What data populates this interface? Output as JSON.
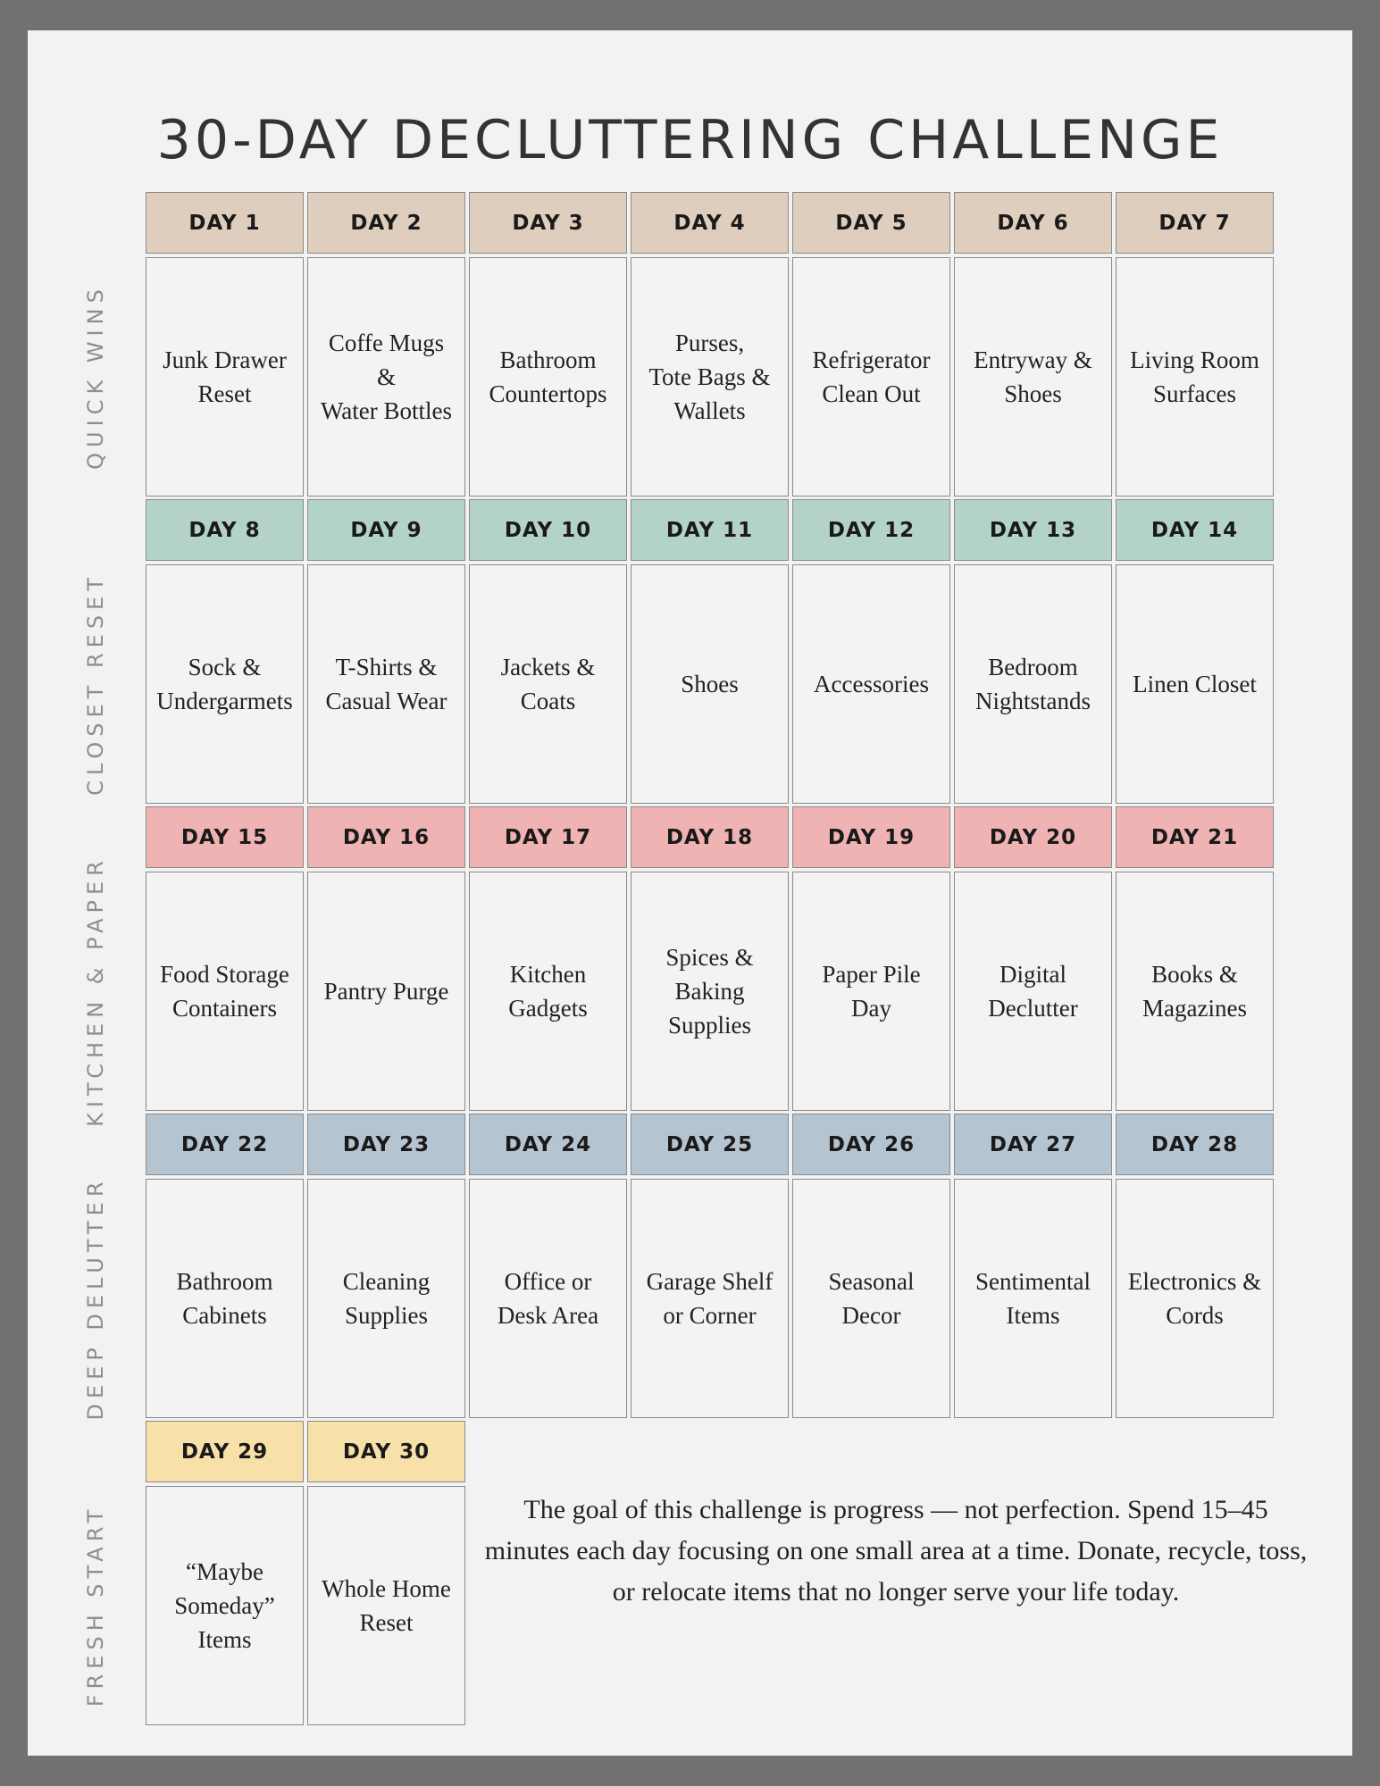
{
  "title": "30-DAY DECLUTTERING CHALLENGE",
  "weeks": [
    {
      "label": "QUICK WINS",
      "color": "#dfcdbd",
      "days": [
        {
          "day": "DAY 1",
          "task": "Junk Drawer\nReset"
        },
        {
          "day": "DAY 2",
          "task": "Coffe Mugs\n&\nWater Bottles"
        },
        {
          "day": "DAY 3",
          "task": "Bathroom\nCountertops"
        },
        {
          "day": "DAY 4",
          "task": "Purses,\nTote Bags &\nWallets"
        },
        {
          "day": "DAY 5",
          "task": "Refrigerator\nClean Out"
        },
        {
          "day": "DAY 6",
          "task": "Entryway &\nShoes"
        },
        {
          "day": "DAY 7",
          "task": "Living Room\nSurfaces"
        }
      ]
    },
    {
      "label": "CLOSET RESET",
      "color": "#b4d3c8",
      "days": [
        {
          "day": "DAY 8",
          "task": "Sock &\nUndergarmets"
        },
        {
          "day": "DAY 9",
          "task": "T-Shirts &\nCasual Wear"
        },
        {
          "day": "DAY 10",
          "task": "Jackets &\nCoats"
        },
        {
          "day": "DAY 11",
          "task": "Shoes"
        },
        {
          "day": "DAY 12",
          "task": "Accessories"
        },
        {
          "day": "DAY 13",
          "task": "Bedroom\nNightstands"
        },
        {
          "day": "DAY 14",
          "task": "Linen Closet"
        }
      ]
    },
    {
      "label": "KITCHEN & PAPER",
      "color": "#f0b3b4",
      "days": [
        {
          "day": "DAY 15",
          "task": "Food Storage\nContainers"
        },
        {
          "day": "DAY 16",
          "task": "Pantry Purge"
        },
        {
          "day": "DAY 17",
          "task": "Kitchen\nGadgets"
        },
        {
          "day": "DAY 18",
          "task": "Spices &\nBaking\nSupplies"
        },
        {
          "day": "DAY 19",
          "task": "Paper Pile\nDay"
        },
        {
          "day": "DAY 20",
          "task": "Digital\nDeclutter"
        },
        {
          "day": "DAY 21",
          "task": "Books &\nMagazines"
        }
      ]
    },
    {
      "label": "DEEP DELUTTER",
      "color": "#b5c4d1",
      "days": [
        {
          "day": "DAY 22",
          "task": "Bathroom\nCabinets"
        },
        {
          "day": "DAY 23",
          "task": "Cleaning\nSupplies"
        },
        {
          "day": "DAY 24",
          "task": "Office or\nDesk Area"
        },
        {
          "day": "DAY 25",
          "task": "Garage Shelf\nor Corner"
        },
        {
          "day": "DAY 26",
          "task": "Seasonal\nDecor"
        },
        {
          "day": "DAY 27",
          "task": "Sentimental\nItems"
        },
        {
          "day": "DAY 28",
          "task": "Electronics &\nCords"
        }
      ]
    },
    {
      "label": "FRESH START",
      "color": "#f7e1a8",
      "days": [
        {
          "day": "DAY 29",
          "task": "“Maybe\nSomeday”\nItems"
        },
        {
          "day": "DAY 30",
          "task": "Whole Home\nReset"
        }
      ]
    }
  ],
  "note": "The goal of this challenge is progress — not perfection. Spend 15–45 minutes each day focusing on one small area at a time. Donate, recycle, toss, or relocate items that no longer serve your life today."
}
